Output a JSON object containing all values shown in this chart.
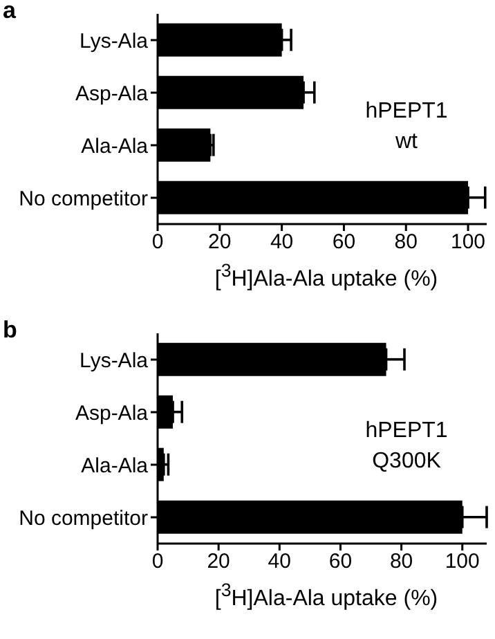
{
  "chart_data": [
    {
      "type": "bar",
      "orientation": "horizontal",
      "title": "a",
      "xlabel": "[$^{3}$H]Ala-Ala uptake (%)",
      "annotations": [
        "hPEPT1\nwt"
      ],
      "categories": [
        "Lys-Ala",
        "Asp-Ala",
        "Ala-Ala",
        "No competitor"
      ],
      "values": [
        40,
        47,
        17,
        100
      ],
      "errors": [
        3,
        3.5,
        1,
        5.5
      ],
      "color": "#000000",
      "xlim": [
        0,
        106
      ],
      "xticks": [
        0,
        20,
        40,
        60,
        80,
        100
      ]
    },
    {
      "type": "bar",
      "orientation": "horizontal",
      "title": "b",
      "xlabel": "[$^{3}$H]Ala-Ala uptake (%)",
      "annotations": [
        "hPEPT1\nQ300K"
      ],
      "categories": [
        "Lys-Ala",
        "Asp-Ala",
        "Ala-Ala",
        "No competitor"
      ],
      "values": [
        75,
        5,
        2,
        100
      ],
      "errors": [
        6,
        3,
        1.5,
        8
      ],
      "color": "#000000",
      "xlim": [
        0,
        108
      ],
      "xticks": [
        0,
        20,
        40,
        60,
        80,
        100
      ]
    }
  ]
}
